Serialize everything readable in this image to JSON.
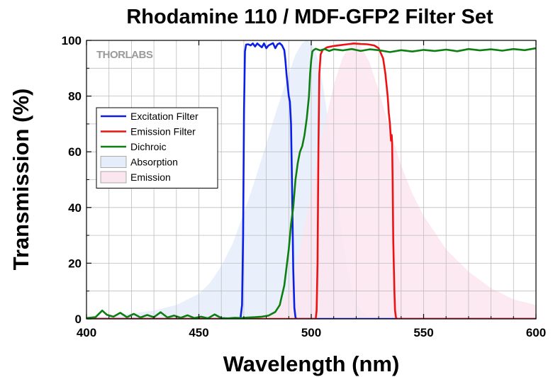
{
  "watermark": "THORLABS",
  "chart_data": {
    "type": "line",
    "title": "Rhodamine 110 / MDF-GFP2 Filter Set",
    "xlabel": "Wavelength (nm)",
    "ylabel": "Transmission (%)",
    "xlim": [
      400,
      600
    ],
    "ylim": [
      0,
      100
    ],
    "xticks": [
      400,
      450,
      500,
      550,
      600
    ],
    "yticks": [
      0,
      20,
      40,
      60,
      80,
      100
    ],
    "grid": true,
    "legend_position": "upper-left",
    "series": [
      {
        "name": "Excitation Filter",
        "kind": "line",
        "color": "#0a1ee6",
        "x": [
          400,
          468.5,
          469.2,
          469.7,
          470.1,
          470.5,
          471,
          472,
          473,
          474,
          475,
          476,
          477,
          478,
          479,
          480,
          481,
          482,
          483,
          484,
          485,
          486,
          487,
          488,
          488.5,
          489,
          489.5,
          490,
          490.5,
          491,
          491.5,
          492,
          492.5,
          493,
          493.5,
          600
        ],
        "y": [
          0,
          0,
          5,
          30,
          75,
          96,
          98.5,
          98.6,
          98.2,
          98.9,
          97.8,
          98.9,
          98.2,
          97.5,
          98.9,
          97.2,
          98.2,
          98.6,
          99.0,
          97.2,
          98.6,
          99.0,
          98.2,
          96.5,
          93,
          88,
          84,
          80,
          78,
          70,
          45,
          18,
          4,
          0.5,
          0,
          0
        ]
      },
      {
        "name": "Emission Filter",
        "kind": "line",
        "color": "#ee1111",
        "x": [
          400,
          502,
          502.4,
          502.8,
          503.2,
          503.6,
          504.2,
          505,
          507,
          510,
          513,
          516,
          519,
          522,
          525,
          528,
          530,
          532,
          533,
          534,
          534.5,
          535,
          535.5,
          535.8,
          536,
          536.2,
          536.5,
          537,
          537.3,
          537.7,
          538.2,
          600
        ],
        "y": [
          0,
          0,
          3,
          20,
          60,
          88,
          95,
          96.5,
          97.5,
          98,
          98.3,
          98.6,
          98.9,
          98.7,
          98.6,
          98.2,
          97.2,
          93.5,
          88,
          80,
          74,
          70,
          64,
          66,
          63,
          50,
          28,
          10,
          3,
          0.5,
          0,
          0
        ]
      },
      {
        "name": "Dichroic",
        "kind": "line",
        "color": "#0d7f12",
        "x": [
          400,
          404,
          407,
          409,
          412,
          415,
          418,
          421,
          424,
          427,
          430,
          433,
          436,
          439,
          442,
          445,
          448,
          451,
          454,
          457,
          460,
          463,
          466,
          469,
          472,
          475,
          478,
          481,
          484,
          486,
          488,
          490,
          491,
          492,
          493,
          494,
          495,
          496,
          497,
          498,
          499,
          499.5,
          500,
          500.5,
          501,
          502,
          504,
          506,
          508,
          510,
          514,
          518,
          522,
          526,
          530,
          535,
          540,
          545,
          550,
          555,
          560,
          565,
          570,
          575,
          580,
          585,
          590,
          595,
          600
        ],
        "y": [
          0.3,
          0.6,
          3,
          1.5,
          0.8,
          2.2,
          0.6,
          1.8,
          0.5,
          1.4,
          0.6,
          2.4,
          0.5,
          1.2,
          0.4,
          1.3,
          0.3,
          0.8,
          0.2,
          1.6,
          0.3,
          0.2,
          0.4,
          0.3,
          0.5,
          0.6,
          0.8,
          1.2,
          2.5,
          5,
          12,
          25,
          34,
          40,
          50,
          56,
          60,
          62,
          66,
          72,
          80,
          88,
          93,
          96,
          96.5,
          97,
          96.4,
          96.9,
          96.2,
          96.8,
          96.4,
          96.9,
          96.2,
          96.8,
          96.5,
          95.8,
          96.5,
          96,
          96.6,
          96.2,
          96.7,
          96.1,
          96.9,
          96.4,
          96.8,
          96.3,
          96.9,
          96.5,
          97.2
        ]
      },
      {
        "name": "Absorption",
        "kind": "area",
        "color": "#e6edfa",
        "x": [
          400,
          410,
          420,
          430,
          440,
          450,
          455,
          460,
          465,
          470,
          475,
          480,
          485,
          490,
          493,
          496,
          498,
          500,
          502,
          504,
          506,
          508,
          510,
          512,
          514,
          516,
          518,
          520,
          522,
          524,
          526,
          530,
          600
        ],
        "y": [
          0.5,
          1,
          2,
          3,
          5,
          9,
          13,
          19,
          27,
          38,
          50,
          63,
          76,
          88,
          95,
          99,
          100,
          99,
          96,
          90,
          80,
          68,
          54,
          40,
          28,
          18,
          11,
          6,
          3,
          1.5,
          0.8,
          0.3,
          0
        ]
      },
      {
        "name": "Emission",
        "kind": "area",
        "color": "#fbe5ee",
        "x": [
          400,
          470,
          480,
          485,
          490,
          495,
          500,
          505,
          510,
          514,
          518,
          522,
          526,
          530,
          535,
          540,
          545,
          550,
          560,
          570,
          580,
          590,
          600
        ],
        "y": [
          0,
          0,
          1,
          3,
          10,
          25,
          45,
          66,
          84,
          94,
          99,
          98,
          92,
          82,
          68,
          55,
          45,
          37,
          25,
          17,
          11,
          7,
          5
        ]
      }
    ]
  }
}
